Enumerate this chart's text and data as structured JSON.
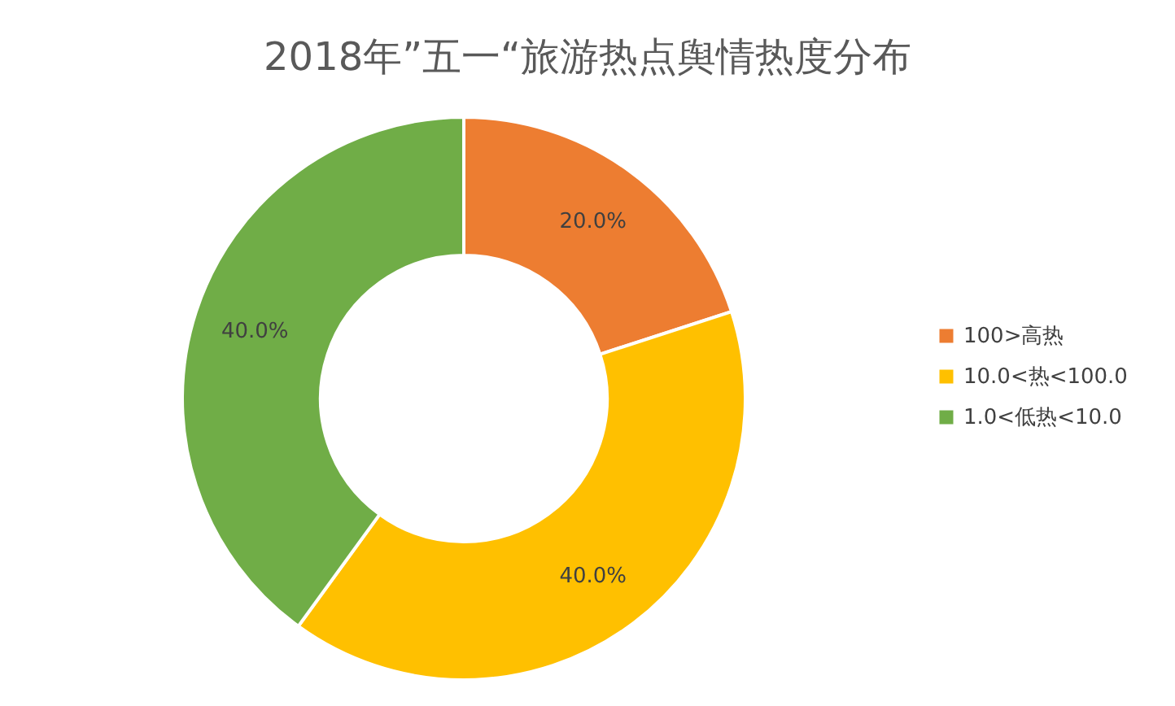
{
  "chart_data": {
    "type": "donut",
    "title": "2018年”五一“旅游热点舆情热度分布",
    "categories": [
      "100>高热",
      "10.0<热<100.0",
      "1.0<低热<10.0"
    ],
    "values": [
      20,
      40,
      40
    ],
    "colors": [
      "#ed7d31",
      "#ffc000",
      "#70ad47"
    ],
    "value_labels": [
      "20.0%",
      "40.0%",
      "40.0%"
    ],
    "legend": "right"
  }
}
